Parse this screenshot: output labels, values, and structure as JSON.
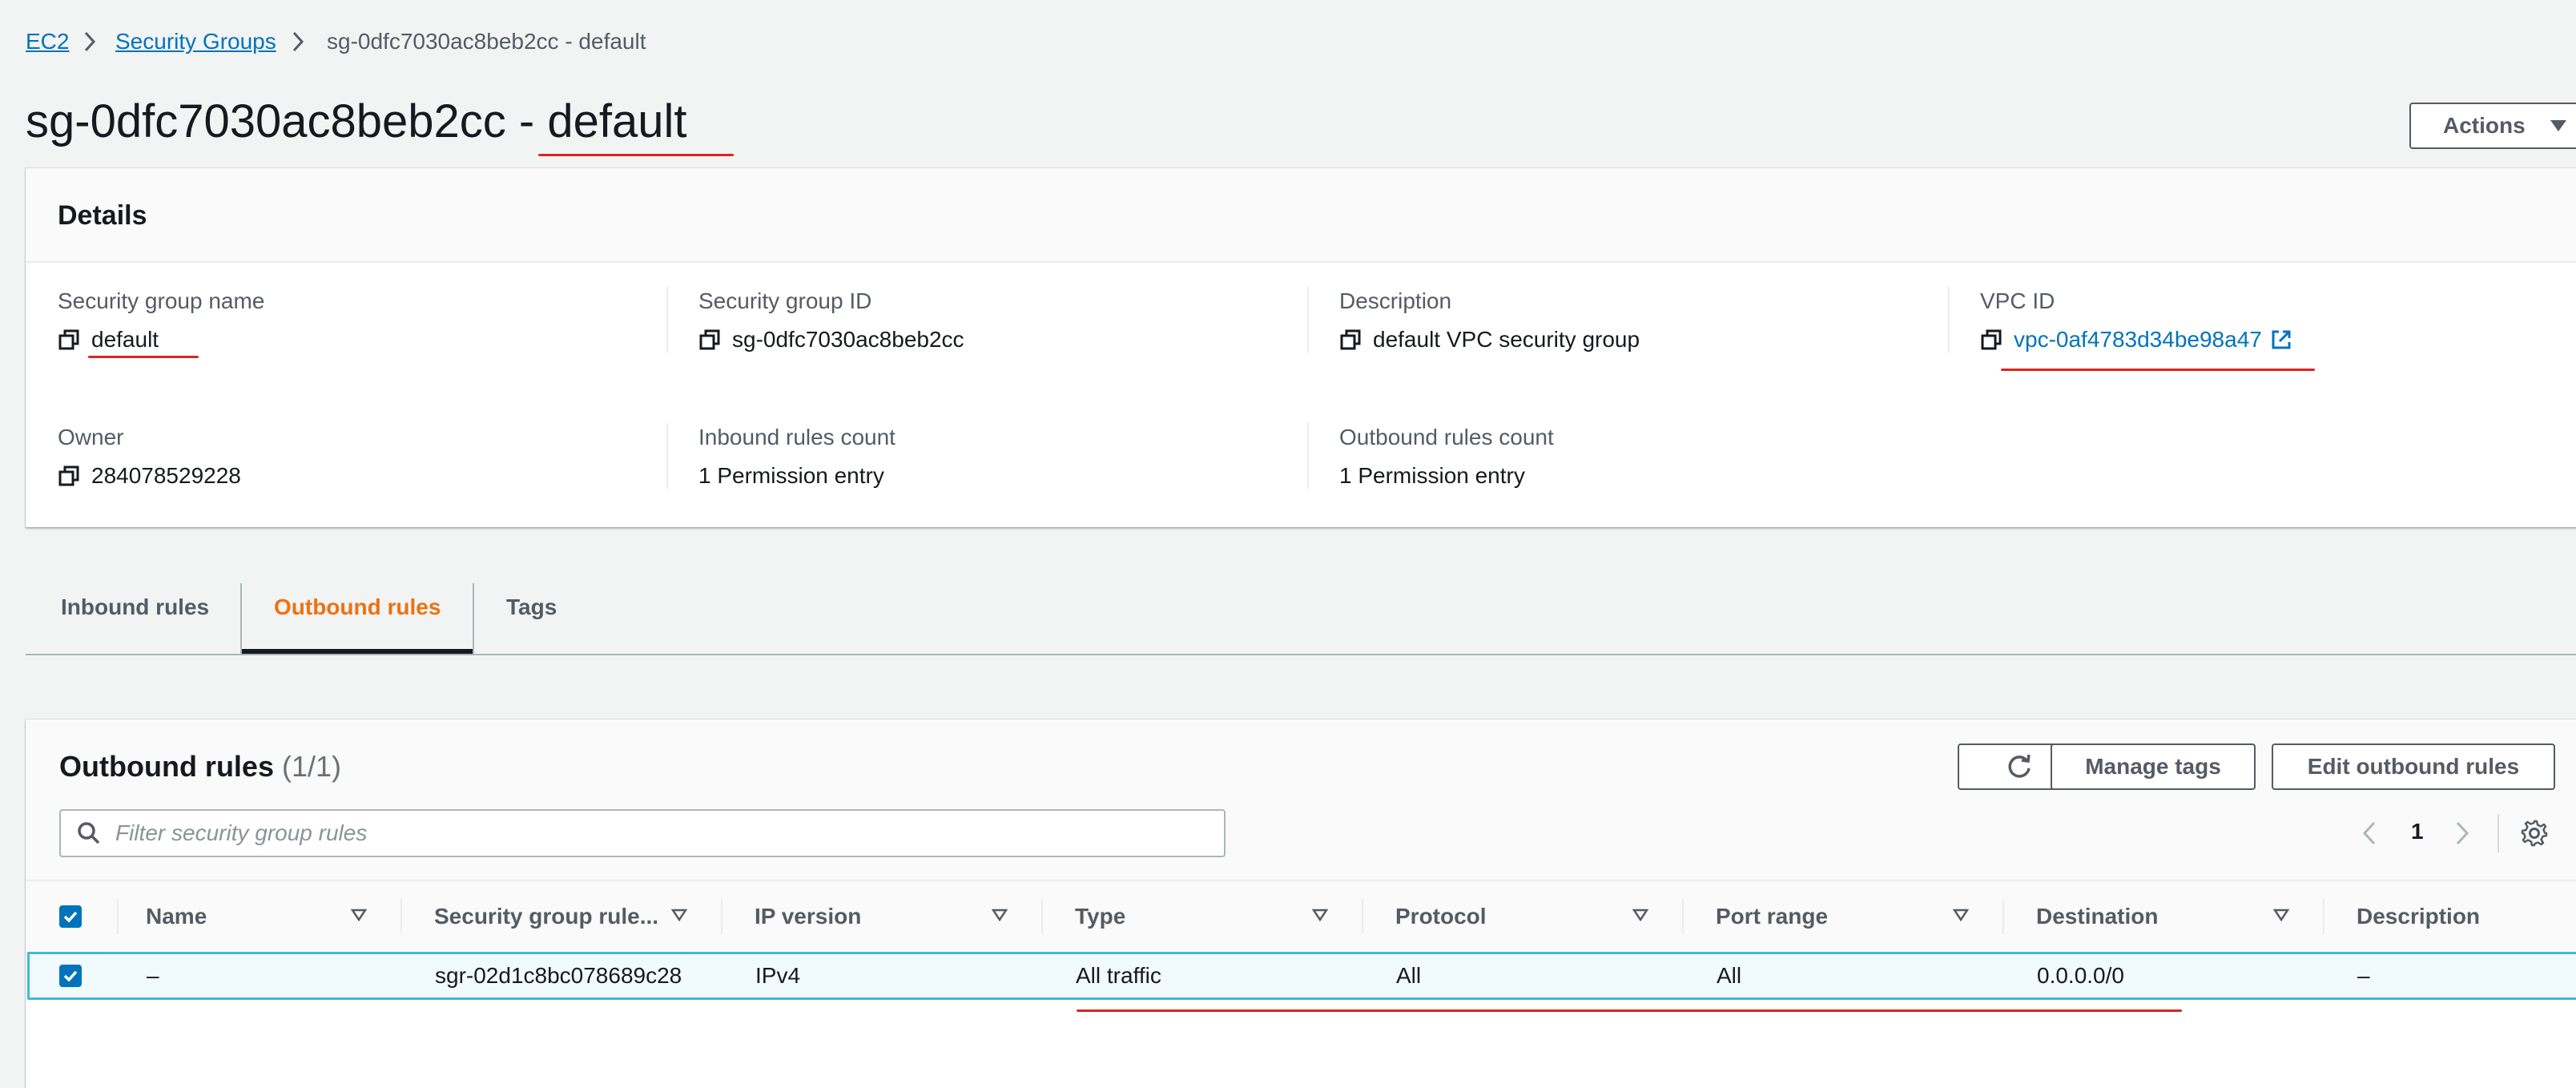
{
  "breadcrumb": {
    "items": [
      {
        "label": "EC2"
      },
      {
        "label": "Security Groups"
      },
      {
        "label": "sg-0dfc7030ac8beb2cc - default"
      }
    ]
  },
  "header": {
    "title_id": "sg-0dfc7030ac8beb2cc - ",
    "title_name": "default",
    "actions_label": "Actions"
  },
  "details": {
    "title": "Details",
    "fields": {
      "sg_name": {
        "label": "Security group name",
        "value": "default"
      },
      "sg_id": {
        "label": "Security group ID",
        "value": "sg-0dfc7030ac8beb2cc"
      },
      "description": {
        "label": "Description",
        "value": "default VPC security group"
      },
      "vpc_id": {
        "label": "VPC ID",
        "value": "vpc-0af4783d34be98a47"
      },
      "owner": {
        "label": "Owner",
        "value": "284078529228"
      },
      "inbound_count": {
        "label": "Inbound rules count",
        "value": "1 Permission entry"
      },
      "outbound_count": {
        "label": "Outbound rules count",
        "value": "1 Permission entry"
      }
    }
  },
  "tabs": [
    {
      "label": "Inbound rules",
      "active": false
    },
    {
      "label": "Outbound rules",
      "active": true
    },
    {
      "label": "Tags",
      "active": false
    }
  ],
  "outbound": {
    "title": "Outbound rules",
    "count": "(1/1)",
    "manage_tags_label": "Manage tags",
    "edit_label": "Edit outbound rules",
    "search_placeholder": "Filter security group rules",
    "page": "1",
    "columns": [
      "Name",
      "Security group rule...",
      "IP version",
      "Type",
      "Protocol",
      "Port range",
      "Destination",
      "Description"
    ],
    "rows": [
      {
        "selected": true,
        "name": "–",
        "rule_id": "sgr-02d1c8bc078689c28",
        "ip_version": "IPv4",
        "type": "All traffic",
        "protocol": "All",
        "port_range": "All",
        "destination": "0.0.0.0/0",
        "description": "–"
      }
    ]
  },
  "colors": {
    "link": "#0073bb",
    "active_tab": "#ec7211",
    "annotation": "#e0231d",
    "selected_row_border": "#44b9d6"
  }
}
